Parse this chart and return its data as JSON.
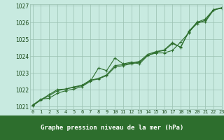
{
  "bg_color": "#c8eae0",
  "plot_bg_color": "#c8eae0",
  "label_bar_color": "#2d6e2d",
  "label_text_color": "#ffffff",
  "line_color": "#2d6e2d",
  "grid_color": "#9abfb0",
  "tick_color": "#1a4a1a",
  "xlabel": "Graphe pression niveau de la mer (hPa)",
  "xlim": [
    -0.3,
    23.0
  ],
  "ylim": [
    1020.85,
    1027.1
  ],
  "xticks": [
    0,
    1,
    2,
    3,
    4,
    5,
    6,
    7,
    8,
    9,
    10,
    11,
    12,
    13,
    14,
    15,
    16,
    17,
    18,
    19,
    20,
    21,
    22,
    23
  ],
  "yticks": [
    1021,
    1022,
    1023,
    1024,
    1025,
    1026,
    1027
  ],
  "s1_x": [
    0,
    1,
    2,
    3,
    4,
    5,
    6,
    7,
    8,
    9,
    10,
    11,
    12,
    13,
    14,
    15,
    16,
    17,
    18,
    19,
    20,
    21,
    22,
    23
  ],
  "s1_y": [
    1021.1,
    1021.45,
    1021.5,
    1021.8,
    1021.95,
    1022.05,
    1022.2,
    1022.5,
    1023.3,
    1023.15,
    1023.9,
    1023.55,
    1023.65,
    1023.55,
    1024.05,
    1024.2,
    1024.2,
    1024.35,
    1024.85,
    1025.4,
    1026.05,
    1026.05,
    1026.75,
    1026.9
  ],
  "s2_x": [
    0,
    1,
    2,
    3,
    4,
    5,
    6,
    7,
    8,
    9,
    10,
    11,
    12,
    13,
    14,
    15,
    16,
    17,
    18,
    19,
    20,
    21,
    22,
    23
  ],
  "s2_y": [
    1021.05,
    1021.4,
    1021.65,
    1021.95,
    1022.05,
    1022.15,
    1022.25,
    1022.55,
    1022.65,
    1022.85,
    1023.35,
    1023.45,
    1023.55,
    1023.65,
    1024.05,
    1024.25,
    1024.35,
    1024.75,
    1024.55,
    1025.45,
    1025.95,
    1026.15,
    1026.75,
    1026.87
  ],
  "s3_x": [
    0,
    1,
    2,
    3,
    4,
    5,
    6,
    7,
    8,
    9,
    10,
    11,
    12,
    13,
    14,
    15,
    16,
    17,
    18,
    19,
    20,
    21,
    22,
    23
  ],
  "s3_y": [
    1021.08,
    1021.42,
    1021.72,
    1022.02,
    1022.05,
    1022.18,
    1022.28,
    1022.58,
    1022.68,
    1022.9,
    1023.45,
    1023.5,
    1023.6,
    1023.7,
    1024.12,
    1024.28,
    1024.38,
    1024.82,
    1024.52,
    1025.5,
    1026.02,
    1026.22,
    1026.78,
    1026.88
  ]
}
